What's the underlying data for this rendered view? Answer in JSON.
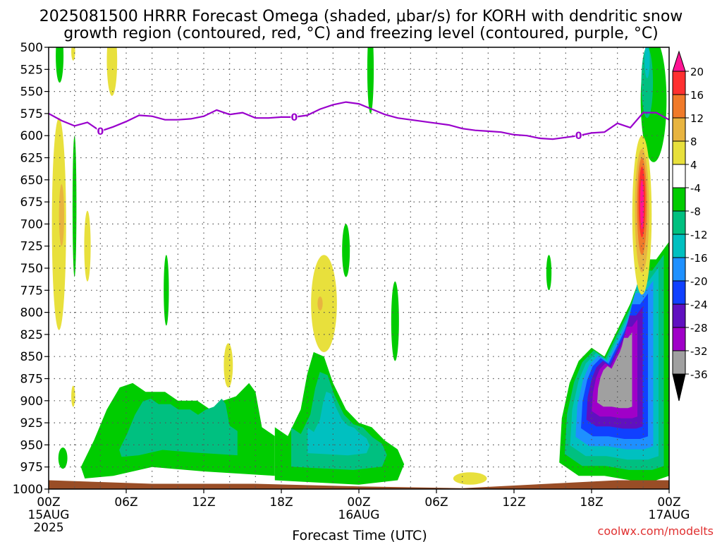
{
  "title_line1": "2025081500 HRRR Forecast Omega (shaded, μbar/s) for KORH with dendritic snow",
  "title_line2": "growth region (contoured, red, °C) and freezing level (contoured, purple, °C)",
  "credit": "coolwx.com/modelts",
  "colors": {
    "freezing_line": "#9900cc",
    "ground": "#994d26",
    "grid": "#666666"
  },
  "chart_data": {
    "type": "heatmap",
    "xlabel": "Forecast Time (UTC)",
    "x_range_hours": [
      0,
      48
    ],
    "x_ticks": [
      {
        "hour": 0,
        "label": "00Z",
        "sub": "15AUG",
        "sub2": "2025"
      },
      {
        "hour": 6,
        "label": "06Z"
      },
      {
        "hour": 12,
        "label": "12Z"
      },
      {
        "hour": 18,
        "label": "18Z"
      },
      {
        "hour": 24,
        "label": "00Z",
        "sub": "16AUG"
      },
      {
        "hour": 30,
        "label": "06Z"
      },
      {
        "hour": 36,
        "label": "12Z"
      },
      {
        "hour": 42,
        "label": "18Z"
      },
      {
        "hour": 48,
        "label": "00Z",
        "sub": "17AUG"
      }
    ],
    "y_range_mb": [
      500,
      1000
    ],
    "y_ticks": [
      500,
      525,
      550,
      575,
      600,
      625,
      650,
      675,
      700,
      725,
      750,
      775,
      800,
      825,
      850,
      875,
      900,
      925,
      950,
      975,
      1000
    ],
    "grid": true,
    "colorbar": {
      "unit": "μbar/s",
      "labels": [
        "20",
        "16",
        "12",
        "8",
        "4",
        "-4",
        "-8",
        "-12",
        "-16",
        "-20",
        "-24",
        "-28",
        "-32",
        "-36"
      ],
      "bins": [
        {
          "range": ">20",
          "color": "#ff1493"
        },
        {
          "range": "16 to 20",
          "color": "#ff3030"
        },
        {
          "range": "12 to 16",
          "color": "#f07a2a"
        },
        {
          "range": "8 to 12",
          "color": "#e8b440"
        },
        {
          "range": "4 to 8",
          "color": "#e8e03c"
        },
        {
          "range": "-4 to 4",
          "color": "#ffffff"
        },
        {
          "range": "-8 to -4",
          "color": "#00cc00"
        },
        {
          "range": "-12 to -8",
          "color": "#00c080"
        },
        {
          "range": "-16 to -12",
          "color": "#00c0c0"
        },
        {
          "range": "-20 to -16",
          "color": "#1e90ff"
        },
        {
          "range": "-24 to -20",
          "color": "#1040ff"
        },
        {
          "range": "-28 to -24",
          "color": "#6010c0"
        },
        {
          "range": "-32 to -28",
          "color": "#a000c8"
        },
        {
          "range": "-36 to -32",
          "color": "#a0a0a0"
        },
        {
          "range": "<-36",
          "color": "#000000"
        }
      ]
    },
    "freezing_level": {
      "contour_label": "0",
      "points_hour_mb": [
        [
          0,
          575
        ],
        [
          1,
          583
        ],
        [
          2,
          589
        ],
        [
          3,
          585
        ],
        [
          4,
          595
        ],
        [
          5,
          590
        ],
        [
          6,
          584
        ],
        [
          7,
          577
        ],
        [
          8,
          578
        ],
        [
          9,
          582
        ],
        [
          10,
          582
        ],
        [
          11,
          581
        ],
        [
          12,
          578
        ],
        [
          13,
          571
        ],
        [
          14,
          576
        ],
        [
          15,
          574
        ],
        [
          16,
          580
        ],
        [
          17,
          580
        ],
        [
          18,
          579
        ],
        [
          19,
          579
        ],
        [
          20,
          577
        ],
        [
          21,
          570
        ],
        [
          22,
          565
        ],
        [
          23,
          562
        ],
        [
          24,
          564
        ],
        [
          25,
          570
        ],
        [
          26,
          576
        ],
        [
          27,
          580
        ],
        [
          28,
          582
        ],
        [
          29,
          584
        ],
        [
          30,
          586
        ],
        [
          31,
          588
        ],
        [
          32,
          592
        ],
        [
          33,
          594
        ],
        [
          34,
          595
        ],
        [
          35,
          596
        ],
        [
          36,
          599
        ],
        [
          37,
          600
        ],
        [
          38,
          603
        ],
        [
          39,
          604
        ],
        [
          40,
          602
        ],
        [
          41,
          600
        ],
        [
          42,
          597
        ],
        [
          43,
          596
        ],
        [
          44,
          586
        ],
        [
          45,
          591
        ],
        [
          46,
          574
        ],
        [
          47,
          574
        ],
        [
          48,
          582
        ]
      ],
      "label_hours": [
        4,
        19,
        41
      ]
    },
    "omega_features": [
      {
        "value_band": "-8 to -4",
        "hour": 0.85,
        "mb": 510,
        "hw": 0.3,
        "hh": 30
      },
      {
        "value_band": "4 to 8",
        "hour": 1.9,
        "mb": 505,
        "hw": 0.15,
        "hh": 10
      },
      {
        "value_band": "4 to 8",
        "hour": 4.9,
        "mb": 515,
        "hw": 0.4,
        "hh": 40
      },
      {
        "value_band": "-8 to -4",
        "hour": 24.9,
        "mb": 525,
        "hw": 0.25,
        "hh": 50
      },
      {
        "value_band": "4 to 8",
        "hour": 0.8,
        "mb": 700,
        "hw": 0.55,
        "hh": 120
      },
      {
        "value_band": "8 to 12",
        "hour": 1.0,
        "mb": 690,
        "hw": 0.2,
        "hh": 35
      },
      {
        "value_band": "-8 to -4",
        "hour": 2.0,
        "mb": 680,
        "hw": 0.15,
        "hh": 80
      },
      {
        "value_band": "4 to 8",
        "hour": 3.0,
        "mb": 725,
        "hw": 0.25,
        "hh": 40
      },
      {
        "value_band": "-8 to -4",
        "hour": 9.1,
        "mb": 775,
        "hw": 0.2,
        "hh": 40
      },
      {
        "value_band": "4 to 8",
        "hour": 21.3,
        "mb": 790,
        "hw": 1.0,
        "hh": 55
      },
      {
        "value_band": "8 to 12",
        "hour": 21.0,
        "mb": 790,
        "hw": 0.2,
        "hh": 8
      },
      {
        "value_band": "-8 to -4",
        "hour": 23.0,
        "mb": 730,
        "hw": 0.3,
        "hh": 30
      },
      {
        "value_band": "-8 to -4",
        "hour": 26.8,
        "mb": 810,
        "hw": 0.3,
        "hh": 45
      },
      {
        "value_band": "4 to 8",
        "hour": 13.9,
        "mb": 860,
        "hw": 0.35,
        "hh": 25
      },
      {
        "value_band": "4 to 8",
        "hour": 1.9,
        "mb": 895,
        "hw": 0.15,
        "hh": 12
      },
      {
        "value_band": "-8 to -4",
        "hour": 1.1,
        "mb": 965,
        "hw": 0.35,
        "hh": 12
      },
      {
        "value_band": "4 to 8",
        "hour": 32.6,
        "mb": 988,
        "hw": 1.3,
        "hh": 7
      },
      {
        "value_band": "-8 to -4",
        "hour": 38.7,
        "mb": 755,
        "hw": 0.2,
        "hh": 20
      },
      {
        "value_band": "-8 to -4",
        "hour": 46.8,
        "mb": 560,
        "hw": 1.0,
        "hh": 70
      },
      {
        "value_band": "-12 to -8",
        "hour": 46.3,
        "mb": 540,
        "hw": 0.45,
        "hh": 40
      },
      {
        "value_band": "-16 to -12",
        "hour": 46.3,
        "mb": 515,
        "hw": 0.2,
        "hh": 20
      },
      {
        "value_band": "4 to 8",
        "hour": 45.9,
        "mb": 690,
        "hw": 0.75,
        "hh": 90
      },
      {
        "value_band": "8 to 12",
        "hour": 45.9,
        "mb": 685,
        "hw": 0.55,
        "hh": 70
      },
      {
        "value_band": "12 to 16",
        "hour": 45.9,
        "mb": 680,
        "hw": 0.38,
        "hh": 55
      },
      {
        "value_band": "16 to 20",
        "hour": 45.9,
        "mb": 675,
        "hw": 0.26,
        "hh": 40
      },
      {
        "value_band": ">20",
        "hour": 45.9,
        "mb": 678,
        "hw": 0.14,
        "hh": 28
      }
    ],
    "low_level_blobs": [
      {
        "bands": [
          "-8 to -4",
          "-12 to -8"
        ],
        "points_hour_mb": [
          [
            2.5,
            975
          ],
          [
            3.5,
            945
          ],
          [
            4.5,
            910
          ],
          [
            5.5,
            885
          ],
          [
            6.5,
            880
          ],
          [
            7.5,
            890
          ],
          [
            9,
            890
          ],
          [
            10,
            900
          ],
          [
            11.5,
            900
          ],
          [
            12.5,
            910
          ],
          [
            13.5,
            900
          ],
          [
            14.5,
            895
          ],
          [
            15.5,
            880
          ],
          [
            16,
            890
          ],
          [
            16.5,
            930
          ],
          [
            17.5,
            940
          ],
          [
            17.5,
            985
          ],
          [
            12,
            980
          ],
          [
            8,
            975
          ],
          [
            5,
            985
          ],
          [
            2.8,
            988
          ]
        ]
      },
      {
        "bands": [
          "-8 to -4",
          "-12 to -8",
          "-16 to -12"
        ],
        "points_hour_mb": [
          [
            17.5,
            930
          ],
          [
            18.5,
            940
          ],
          [
            19.5,
            910
          ],
          [
            20,
            870
          ],
          [
            20.5,
            845
          ],
          [
            21.3,
            850
          ],
          [
            22,
            880
          ],
          [
            23,
            910
          ],
          [
            24,
            925
          ],
          [
            25,
            930
          ],
          [
            26,
            945
          ],
          [
            27,
            955
          ],
          [
            27.5,
            972
          ],
          [
            27,
            990
          ],
          [
            24,
            995
          ],
          [
            20,
            992
          ],
          [
            17.5,
            990
          ]
        ]
      },
      {
        "bands": [
          "-8 to -4",
          "-12 to -8",
          "-16 to -12",
          "-20 to -16",
          "-24 to -20",
          "-28 to -24",
          "-32 to -28",
          "-36 to -32"
        ],
        "points_hour_mb": [
          [
            39.5,
            970
          ],
          [
            39.7,
            920
          ],
          [
            40.3,
            880
          ],
          [
            41,
            855
          ],
          [
            42,
            840
          ],
          [
            43,
            850
          ],
          [
            43.5,
            835
          ],
          [
            44,
            820
          ],
          [
            45,
            790
          ],
          [
            45.5,
            770
          ],
          [
            46,
            740
          ],
          [
            47,
            740
          ],
          [
            48,
            720
          ],
          [
            48,
            985
          ],
          [
            47,
            990
          ],
          [
            45,
            990
          ],
          [
            43,
            985
          ],
          [
            41,
            985
          ]
        ]
      }
    ],
    "ground_mb": [
      [
        0,
        990
      ],
      [
        8,
        994
      ],
      [
        16,
        994
      ],
      [
        24,
        997
      ],
      [
        32,
        999
      ],
      [
        40,
        993
      ],
      [
        44,
        990
      ],
      [
        48,
        990
      ]
    ]
  }
}
